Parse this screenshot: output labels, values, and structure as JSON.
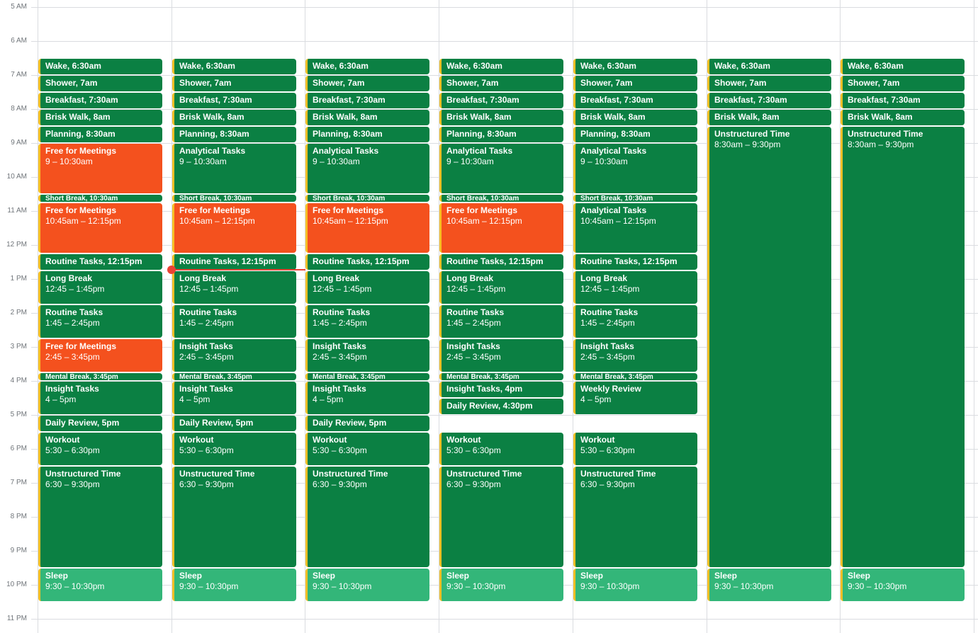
{
  "hours": [
    "5 AM",
    "6 AM",
    "7 AM",
    "8 AM",
    "9 AM",
    "10 AM",
    "11 AM",
    "12 PM",
    "1 PM",
    "2 PM",
    "3 PM",
    "4 PM",
    "5 PM",
    "6 PM",
    "7 PM",
    "8 PM",
    "9 PM",
    "10 PM",
    "11 PM"
  ],
  "colors": {
    "event_green": "#0b8043",
    "meeting_orange": "#f4511e",
    "sleep_green": "#33b679",
    "accent_border": "#f6bf26",
    "now_red": "#ea4335"
  },
  "days": [
    {
      "events": [
        {
          "title": "Wake, 6:30am",
          "start": 6.5,
          "end": 7,
          "color": "green"
        },
        {
          "title": "Shower, 7am",
          "start": 7,
          "end": 7.5,
          "color": "green"
        },
        {
          "title": "Breakfast, 7:30am",
          "start": 7.5,
          "end": 8,
          "color": "green"
        },
        {
          "title": "Brisk Walk, 8am",
          "start": 8,
          "end": 8.5,
          "color": "green"
        },
        {
          "title": "Planning, 8:30am",
          "start": 8.5,
          "end": 9,
          "color": "green"
        },
        {
          "title": "Free for Meetings",
          "time": "9 – 10:30am",
          "start": 9,
          "end": 10.5,
          "color": "orange"
        },
        {
          "title": "Short Break, 10:30am",
          "start": 10.5,
          "end": 10.75,
          "color": "green"
        },
        {
          "title": "Free for Meetings",
          "time": "10:45am – 12:15pm",
          "start": 10.75,
          "end": 12.25,
          "color": "orange"
        },
        {
          "title": "Routine Tasks, 12:15pm",
          "start": 12.25,
          "end": 12.75,
          "color": "green"
        },
        {
          "title": "Long Break",
          "time": "12:45 – 1:45pm",
          "start": 12.75,
          "end": 13.75,
          "color": "green"
        },
        {
          "title": "Routine Tasks",
          "time": "1:45 – 2:45pm",
          "start": 13.75,
          "end": 14.75,
          "color": "green"
        },
        {
          "title": "Free for Meetings",
          "time": "2:45 – 3:45pm",
          "start": 14.75,
          "end": 15.75,
          "color": "orange"
        },
        {
          "title": "Mental Break, 3:45pm",
          "start": 15.75,
          "end": 16,
          "color": "green"
        },
        {
          "title": "Insight Tasks",
          "time": "4 – 5pm",
          "start": 16,
          "end": 17,
          "color": "green"
        },
        {
          "title": "Daily Review, 5pm",
          "start": 17,
          "end": 17.5,
          "color": "green"
        },
        {
          "title": "Workout",
          "time": "5:30 – 6:30pm",
          "start": 17.5,
          "end": 18.5,
          "color": "green"
        },
        {
          "title": "Unstructured Time",
          "time": "6:30 – 9:30pm",
          "start": 18.5,
          "end": 21.5,
          "color": "green"
        },
        {
          "title": "Sleep",
          "time": "9:30 – 10:30pm",
          "start": 21.5,
          "end": 22.5,
          "color": "light"
        }
      ]
    },
    {
      "events": [
        {
          "title": "Wake, 6:30am",
          "start": 6.5,
          "end": 7,
          "color": "green"
        },
        {
          "title": "Shower, 7am",
          "start": 7,
          "end": 7.5,
          "color": "green"
        },
        {
          "title": "Breakfast, 7:30am",
          "start": 7.5,
          "end": 8,
          "color": "green"
        },
        {
          "title": "Brisk Walk, 8am",
          "start": 8,
          "end": 8.5,
          "color": "green"
        },
        {
          "title": "Planning, 8:30am",
          "start": 8.5,
          "end": 9,
          "color": "green"
        },
        {
          "title": "Analytical Tasks",
          "time": "9 – 10:30am",
          "start": 9,
          "end": 10.5,
          "color": "green"
        },
        {
          "title": "Short Break, 10:30am",
          "start": 10.5,
          "end": 10.75,
          "color": "green"
        },
        {
          "title": "Free for Meetings",
          "time": "10:45am – 12:15pm",
          "start": 10.75,
          "end": 12.25,
          "color": "orange"
        },
        {
          "title": "Routine Tasks, 12:15pm",
          "start": 12.25,
          "end": 12.75,
          "color": "green"
        },
        {
          "title": "Long Break",
          "time": "12:45 – 1:45pm",
          "start": 12.75,
          "end": 13.75,
          "color": "green"
        },
        {
          "title": "Routine Tasks",
          "time": "1:45 – 2:45pm",
          "start": 13.75,
          "end": 14.75,
          "color": "green"
        },
        {
          "title": "Insight Tasks",
          "time": "2:45 – 3:45pm",
          "start": 14.75,
          "end": 15.75,
          "color": "green"
        },
        {
          "title": "Mental Break, 3:45pm",
          "start": 15.75,
          "end": 16,
          "color": "green"
        },
        {
          "title": "Insight Tasks",
          "time": "4 – 5pm",
          "start": 16,
          "end": 17,
          "color": "green"
        },
        {
          "title": "Daily Review, 5pm",
          "start": 17,
          "end": 17.5,
          "color": "green"
        },
        {
          "title": "Workout",
          "time": "5:30 – 6:30pm",
          "start": 17.5,
          "end": 18.5,
          "color": "green"
        },
        {
          "title": "Unstructured Time",
          "time": "6:30 – 9:30pm",
          "start": 18.5,
          "end": 21.5,
          "color": "green"
        },
        {
          "title": "Sleep",
          "time": "9:30 – 10:30pm",
          "start": 21.5,
          "end": 22.5,
          "color": "light"
        }
      ]
    },
    {
      "events": [
        {
          "title": "Wake, 6:30am",
          "start": 6.5,
          "end": 7,
          "color": "green"
        },
        {
          "title": "Shower, 7am",
          "start": 7,
          "end": 7.5,
          "color": "green"
        },
        {
          "title": "Breakfast, 7:30am",
          "start": 7.5,
          "end": 8,
          "color": "green"
        },
        {
          "title": "Brisk Walk, 8am",
          "start": 8,
          "end": 8.5,
          "color": "green"
        },
        {
          "title": "Planning, 8:30am",
          "start": 8.5,
          "end": 9,
          "color": "green"
        },
        {
          "title": "Analytical Tasks",
          "time": "9 – 10:30am",
          "start": 9,
          "end": 10.5,
          "color": "green"
        },
        {
          "title": "Short Break, 10:30am",
          "start": 10.5,
          "end": 10.75,
          "color": "green"
        },
        {
          "title": "Free for Meetings",
          "time": "10:45am – 12:15pm",
          "start": 10.75,
          "end": 12.25,
          "color": "orange"
        },
        {
          "title": "Routine Tasks, 12:15pm",
          "start": 12.25,
          "end": 12.75,
          "color": "green"
        },
        {
          "title": "Long Break",
          "time": "12:45 – 1:45pm",
          "start": 12.75,
          "end": 13.75,
          "color": "green"
        },
        {
          "title": "Routine Tasks",
          "time": "1:45 – 2:45pm",
          "start": 13.75,
          "end": 14.75,
          "color": "green"
        },
        {
          "title": "Insight Tasks",
          "time": "2:45 – 3:45pm",
          "start": 14.75,
          "end": 15.75,
          "color": "green"
        },
        {
          "title": "Mental Break, 3:45pm",
          "start": 15.75,
          "end": 16,
          "color": "green"
        },
        {
          "title": "Insight Tasks",
          "time": "4 – 5pm",
          "start": 16,
          "end": 17,
          "color": "green"
        },
        {
          "title": "Daily Review, 5pm",
          "start": 17,
          "end": 17.5,
          "color": "green"
        },
        {
          "title": "Workout",
          "time": "5:30 – 6:30pm",
          "start": 17.5,
          "end": 18.5,
          "color": "green"
        },
        {
          "title": "Unstructured Time",
          "time": "6:30 – 9:30pm",
          "start": 18.5,
          "end": 21.5,
          "color": "green"
        },
        {
          "title": "Sleep",
          "time": "9:30 – 10:30pm",
          "start": 21.5,
          "end": 22.5,
          "color": "light"
        }
      ]
    },
    {
      "events": [
        {
          "title": "Wake, 6:30am",
          "start": 6.5,
          "end": 7,
          "color": "green"
        },
        {
          "title": "Shower, 7am",
          "start": 7,
          "end": 7.5,
          "color": "green"
        },
        {
          "title": "Breakfast, 7:30am",
          "start": 7.5,
          "end": 8,
          "color": "green"
        },
        {
          "title": "Brisk Walk, 8am",
          "start": 8,
          "end": 8.5,
          "color": "green"
        },
        {
          "title": "Planning, 8:30am",
          "start": 8.5,
          "end": 9,
          "color": "green"
        },
        {
          "title": "Analytical Tasks",
          "time": "9 – 10:30am",
          "start": 9,
          "end": 10.5,
          "color": "green"
        },
        {
          "title": "Short Break, 10:30am",
          "start": 10.5,
          "end": 10.75,
          "color": "green"
        },
        {
          "title": "Free for Meetings",
          "time": "10:45am – 12:15pm",
          "start": 10.75,
          "end": 12.25,
          "color": "orange"
        },
        {
          "title": "Routine Tasks, 12:15pm",
          "start": 12.25,
          "end": 12.75,
          "color": "green"
        },
        {
          "title": "Long Break",
          "time": "12:45 – 1:45pm",
          "start": 12.75,
          "end": 13.75,
          "color": "green"
        },
        {
          "title": "Routine Tasks",
          "time": "1:45 – 2:45pm",
          "start": 13.75,
          "end": 14.75,
          "color": "green"
        },
        {
          "title": "Insight Tasks",
          "time": "2:45 – 3:45pm",
          "start": 14.75,
          "end": 15.75,
          "color": "green"
        },
        {
          "title": "Mental Break, 3:45pm",
          "start": 15.75,
          "end": 16,
          "color": "green"
        },
        {
          "title": "Insight Tasks, 4pm",
          "start": 16,
          "end": 16.5,
          "color": "green"
        },
        {
          "title": "Daily Review, 4:30pm",
          "start": 16.5,
          "end": 17,
          "color": "green"
        },
        {
          "title": "Workout",
          "time": "5:30 – 6:30pm",
          "start": 17.5,
          "end": 18.5,
          "color": "green"
        },
        {
          "title": "Unstructured Time",
          "time": "6:30 – 9:30pm",
          "start": 18.5,
          "end": 21.5,
          "color": "green"
        },
        {
          "title": "Sleep",
          "time": "9:30 – 10:30pm",
          "start": 21.5,
          "end": 22.5,
          "color": "light"
        }
      ]
    },
    {
      "events": [
        {
          "title": "Wake, 6:30am",
          "start": 6.5,
          "end": 7,
          "color": "green"
        },
        {
          "title": "Shower, 7am",
          "start": 7,
          "end": 7.5,
          "color": "green"
        },
        {
          "title": "Breakfast, 7:30am",
          "start": 7.5,
          "end": 8,
          "color": "green"
        },
        {
          "title": "Brisk Walk, 8am",
          "start": 8,
          "end": 8.5,
          "color": "green"
        },
        {
          "title": "Planning, 8:30am",
          "start": 8.5,
          "end": 9,
          "color": "green"
        },
        {
          "title": "Analytical Tasks",
          "time": "9 – 10:30am",
          "start": 9,
          "end": 10.5,
          "color": "green"
        },
        {
          "title": "Short Break, 10:30am",
          "start": 10.5,
          "end": 10.75,
          "color": "green"
        },
        {
          "title": "Analytical Tasks",
          "time": "10:45am – 12:15pm",
          "start": 10.75,
          "end": 12.25,
          "color": "green"
        },
        {
          "title": "Routine Tasks, 12:15pm",
          "start": 12.25,
          "end": 12.75,
          "color": "green"
        },
        {
          "title": "Long Break",
          "time": "12:45 – 1:45pm",
          "start": 12.75,
          "end": 13.75,
          "color": "green"
        },
        {
          "title": "Routine Tasks",
          "time": "1:45 – 2:45pm",
          "start": 13.75,
          "end": 14.75,
          "color": "green"
        },
        {
          "title": "Insight Tasks",
          "time": "2:45 – 3:45pm",
          "start": 14.75,
          "end": 15.75,
          "color": "green"
        },
        {
          "title": "Mental Break, 3:45pm",
          "start": 15.75,
          "end": 16,
          "color": "green"
        },
        {
          "title": "Weekly Review",
          "time": "4 – 5pm",
          "start": 16,
          "end": 17,
          "color": "green"
        },
        {
          "title": "Workout",
          "time": "5:30 – 6:30pm",
          "start": 17.5,
          "end": 18.5,
          "color": "green"
        },
        {
          "title": "Unstructured Time",
          "time": "6:30 – 9:30pm",
          "start": 18.5,
          "end": 21.5,
          "color": "green"
        },
        {
          "title": "Sleep",
          "time": "9:30 – 10:30pm",
          "start": 21.5,
          "end": 22.5,
          "color": "light"
        }
      ]
    },
    {
      "events": [
        {
          "title": "Wake, 6:30am",
          "start": 6.5,
          "end": 7,
          "color": "green"
        },
        {
          "title": "Shower, 7am",
          "start": 7,
          "end": 7.5,
          "color": "green"
        },
        {
          "title": "Breakfast, 7:30am",
          "start": 7.5,
          "end": 8,
          "color": "green"
        },
        {
          "title": "Brisk Walk, 8am",
          "start": 8,
          "end": 8.5,
          "color": "green"
        },
        {
          "title": "Unstructured Time",
          "time": "8:30am – 9:30pm",
          "start": 8.5,
          "end": 21.5,
          "color": "green"
        },
        {
          "title": "Sleep",
          "time": "9:30 – 10:30pm",
          "start": 21.5,
          "end": 22.5,
          "color": "light"
        }
      ]
    },
    {
      "events": [
        {
          "title": "Wake, 6:30am",
          "start": 6.5,
          "end": 7,
          "color": "green"
        },
        {
          "title": "Shower, 7am",
          "start": 7,
          "end": 7.5,
          "color": "green"
        },
        {
          "title": "Breakfast, 7:30am",
          "start": 7.5,
          "end": 8,
          "color": "green"
        },
        {
          "title": "Brisk Walk, 8am",
          "start": 8,
          "end": 8.5,
          "color": "green"
        },
        {
          "title": "Unstructured Time",
          "time": "8:30am – 9:30pm",
          "start": 8.5,
          "end": 21.5,
          "color": "green"
        },
        {
          "title": "Sleep",
          "time": "9:30 – 10:30pm",
          "start": 21.5,
          "end": 22.5,
          "color": "light"
        }
      ]
    }
  ],
  "current_time": {
    "day": 1,
    "hour": 12.73
  }
}
